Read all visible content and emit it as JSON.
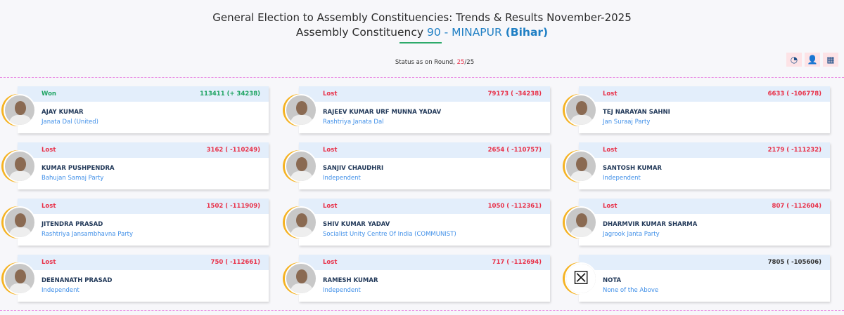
{
  "header": {
    "title": "General Election to Assembly Constituencies: Trends & Results November-2025",
    "subtitle_prefix": "Assembly Constituency",
    "constituency": "90 - MINAPUR",
    "state": "(Bihar)"
  },
  "status": {
    "label": "Status as on Round,",
    "round": "25",
    "total": "/25"
  },
  "toolbar": [
    {
      "icon": "map-chart-icon"
    },
    {
      "icon": "candidate-list-icon"
    },
    {
      "icon": "table-grid-icon"
    }
  ],
  "colors": {
    "won": "#1fa463",
    "lost": "#e8324a",
    "accent": "#1f7fc4"
  },
  "candidates": [
    {
      "status": "Won",
      "votes": "113411 (+ 34238)",
      "name": "AJAY KUMAR",
      "party": "Janata Dal (United)"
    },
    {
      "status": "Lost",
      "votes": "79173 ( -34238)",
      "name": "RAJEEV KUMAR URF MUNNA YADAV",
      "party": "Rashtriya Janata Dal"
    },
    {
      "status": "Lost",
      "votes": "6633 ( -106778)",
      "name": "TEJ NARAYAN SAHNI",
      "party": "Jan Suraaj Party"
    },
    {
      "status": "Lost",
      "votes": "3162 ( -110249)",
      "name": "KUMAR PUSHPENDRA",
      "party": "Bahujan Samaj Party"
    },
    {
      "status": "Lost",
      "votes": "2654 ( -110757)",
      "name": "SANJIV CHAUDHRI",
      "party": "Independent"
    },
    {
      "status": "Lost",
      "votes": "2179 ( -111232)",
      "name": "SANTOSH KUMAR",
      "party": "Independent"
    },
    {
      "status": "Lost",
      "votes": "1502 ( -111909)",
      "name": "JITENDRA PRASAD",
      "party": "Rashtriya Jansambhavna Party"
    },
    {
      "status": "Lost",
      "votes": "1050 ( -112361)",
      "name": "SHIV KUMAR YADAV",
      "party": "Socialist Unity Centre Of India (COMMUNIST)"
    },
    {
      "status": "Lost",
      "votes": "807 ( -112604)",
      "name": "DHARMVIR KUMAR SHARMA",
      "party": "Jagrook Janta Party"
    },
    {
      "status": "Lost",
      "votes": "750 ( -112661)",
      "name": "DEENANATH PRASAD",
      "party": "Independent"
    },
    {
      "status": "Lost",
      "votes": "717 ( -112694)",
      "name": "RAMESH KUMAR",
      "party": "Independent"
    },
    {
      "status": "",
      "votes": "7805 ( -105606)",
      "name": "NOTA",
      "party": "None of the Above"
    }
  ]
}
